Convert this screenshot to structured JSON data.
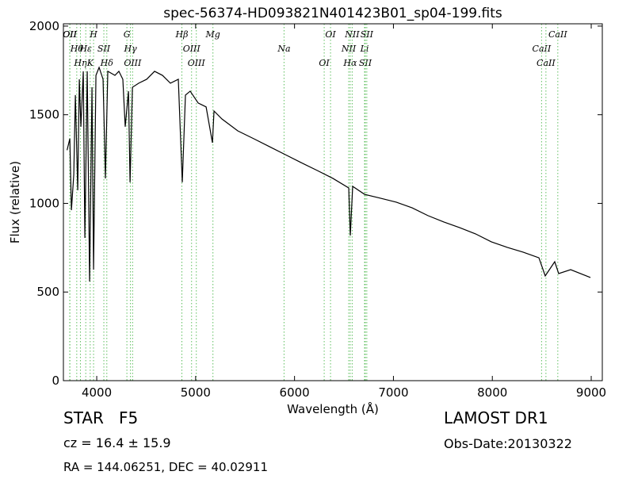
{
  "chart_data": {
    "type": "line",
    "title": "spec-56374-HD093821N401423B01_sp04-199.fits",
    "xlabel": "Wavelength (Å)",
    "ylabel": "Flux (relative)",
    "xlim": [
      3663,
      9112
    ],
    "ylim": [
      0,
      2013
    ],
    "xticks": [
      4000,
      5000,
      6000,
      7000,
      8000,
      9000
    ],
    "yticks": [
      0,
      500,
      1000,
      1500,
      2000
    ],
    "series": [
      {
        "color": "#000000",
        "x": [
          3700,
          3728,
          3744,
          3768,
          3784,
          3808,
          3824,
          3840,
          3864,
          3880,
          3904,
          3928,
          3952,
          3968,
          3992,
          4024,
          4064,
          4088,
          4112,
          4184,
          4224,
          4264,
          4288,
          4321,
          4337,
          4361,
          4425,
          4505,
          4585,
          4665,
          4745,
          4825,
          4865,
          4897,
          4945,
          5026,
          5106,
          5170,
          5186,
          5266,
          5426,
          5587,
          5747,
          5907,
          6067,
          6228,
          6388,
          6548,
          6564,
          6588,
          6708,
          6869,
          7029,
          7189,
          7349,
          7510,
          7670,
          7830,
          7990,
          8151,
          8311,
          8471,
          8535,
          8631,
          8671,
          8792,
          8992
        ],
        "values": [
          1300,
          1365,
          962,
          1163,
          1611,
          1074,
          1700,
          1432,
          1745,
          805,
          1745,
          559,
          1655,
          626,
          1722,
          1767,
          1700,
          1141,
          1745,
          1722,
          1745,
          1700,
          1432,
          1633,
          1119,
          1655,
          1678,
          1700,
          1745,
          1722,
          1678,
          1700,
          1119,
          1611,
          1633,
          1566,
          1544,
          1342,
          1521,
          1476,
          1409,
          1365,
          1320,
          1275,
          1230,
          1186,
          1141,
          1087,
          819,
          1096,
          1051,
          1029,
          1007,
          975,
          931,
          895,
          863,
          828,
          783,
          752,
          725,
          693,
          591,
          671,
          604,
          626,
          582
        ]
      }
    ],
    "line_color": "#5fbf5f",
    "lines": [
      {
        "wavelength": 3727,
        "label": "OII"
      },
      {
        "wavelength": 3798,
        "label": "Hθ"
      },
      {
        "wavelength": 3835,
        "label": "Hη"
      },
      {
        "wavelength": 3729,
        "label": "OII"
      },
      {
        "wavelength": 3889,
        "label": "Hε"
      },
      {
        "wavelength": 3934,
        "label": "K"
      },
      {
        "wavelength": 3968,
        "label": "H"
      },
      {
        "wavelength": 4072,
        "label": "SII"
      },
      {
        "wavelength": 4102,
        "label": "Hδ"
      },
      {
        "wavelength": 4305,
        "label": "G"
      },
      {
        "wavelength": 4341,
        "label": "Hγ"
      },
      {
        "wavelength": 4363,
        "label": "OIII"
      },
      {
        "wavelength": 4861,
        "label": "Hβ"
      },
      {
        "wavelength": 4959,
        "label": "OIII"
      },
      {
        "wavelength": 5007,
        "label": "OIII"
      },
      {
        "wavelength": 5175,
        "label": "Mg"
      },
      {
        "wavelength": 5894,
        "label": "Na"
      },
      {
        "wavelength": 6300,
        "label": "OI"
      },
      {
        "wavelength": 6364,
        "label": "OI"
      },
      {
        "wavelength": 6548,
        "label": "NII"
      },
      {
        "wavelength": 6563,
        "label": "Hα"
      },
      {
        "wavelength": 6583,
        "label": "NII"
      },
      {
        "wavelength": 6708,
        "label": "Li"
      },
      {
        "wavelength": 6716,
        "label": "SII"
      },
      {
        "wavelength": 6731,
        "label": "SII"
      },
      {
        "wavelength": 8498,
        "label": "CaII"
      },
      {
        "wavelength": 8542,
        "label": "CaII"
      },
      {
        "wavelength": 8662,
        "label": "CaII"
      }
    ],
    "annotations": [
      "STAR   F5",
      "cz = 16.4 ± 15.9",
      "RA = 144.06251, DEC = 40.02911",
      "LAMOST DR1",
      "Obs-Date:20130322"
    ]
  }
}
